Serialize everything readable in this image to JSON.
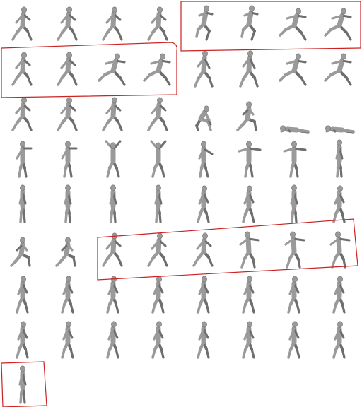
{
  "sprite_sheet": {
    "cols": 8,
    "rows": 9,
    "frame_count": 65,
    "figure_color": "#9a9a9a",
    "figure_shade": "#6e6e6e",
    "highlight_color": "#cc2222",
    "poses": [
      "run",
      "run",
      "run",
      "run",
      "jump",
      "jump",
      "leap",
      "leap",
      "run",
      "run",
      "leap",
      "leap",
      "stride",
      "stride",
      "leap",
      "leap",
      "run",
      "run",
      "run",
      "run",
      "crouch",
      "kneel",
      "prone",
      "prone",
      "wave",
      "wave",
      "arms-up",
      "arms-up",
      "point",
      "arms-out",
      "arms-out",
      "stand",
      "stand",
      "stand",
      "stand",
      "stand",
      "walk",
      "walk",
      "stand",
      "walk",
      "kneel",
      "kneel",
      "run",
      "run",
      "run",
      "throw",
      "throw",
      "throw",
      "walk",
      "walk",
      "walk",
      "walk",
      "walk",
      "walk",
      "walk",
      "walk",
      "walk",
      "walk",
      "walk",
      "walk",
      "walk",
      "walk",
      "walk",
      "walk",
      "stand"
    ],
    "highlighted_groups": [
      {
        "name": "group-row1-right",
        "frames": [
          4,
          5,
          6,
          7
        ]
      },
      {
        "name": "group-row2-left",
        "frames": [
          8,
          9,
          10,
          11
        ]
      },
      {
        "name": "group-row6-right",
        "frames": [
          42,
          43,
          44,
          45,
          46,
          47
        ]
      },
      {
        "name": "group-last-frame",
        "frames": [
          64
        ]
      }
    ]
  }
}
